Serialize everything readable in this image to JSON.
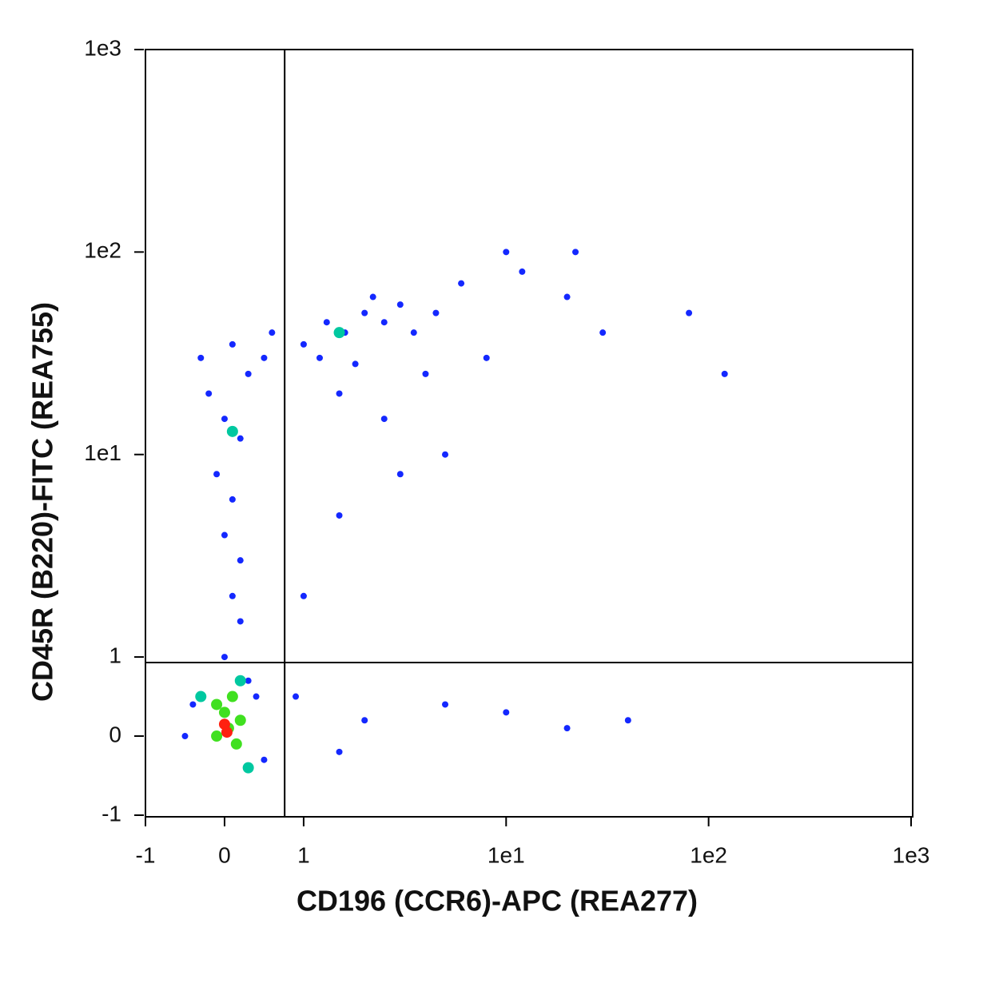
{
  "chart_data": {
    "type": "scatter",
    "xlabel": "CD196 (CCR6)-APC (REA277)",
    "ylabel": "CD45R (B220)-FITC (REA755)",
    "xscale": "biexponential",
    "yscale": "biexponential",
    "xlim": [
      -1,
      1000
    ],
    "ylim": [
      -1,
      1000
    ],
    "xticks": [
      -1,
      0,
      1,
      {
        "value": 10,
        "label": "1e1"
      },
      {
        "value": 100,
        "label": "1e2"
      },
      {
        "value": 1000,
        "label": "1e3"
      }
    ],
    "yticks": [
      -1,
      0,
      1,
      {
        "value": 10,
        "label": "1e1"
      },
      {
        "value": 100,
        "label": "1e2"
      },
      {
        "value": 1000,
        "label": "1e3"
      }
    ],
    "gate": {
      "x": 0.76,
      "y": 0.93
    },
    "series": [
      {
        "color": "#1428ff",
        "x": [
          -0.2,
          0,
          0.2,
          -0.1,
          0.1,
          0.3,
          0.5,
          0.6,
          -0.3,
          0.1,
          0,
          0.2,
          0.1,
          0.2,
          0,
          0.3,
          -0.4,
          0.5,
          0.4,
          -0.5,
          1,
          1.3,
          1.6,
          2,
          2.5,
          3,
          1.2,
          1.8,
          3.5,
          4.5,
          6,
          2.2,
          1.5,
          2.5,
          4,
          5,
          3,
          1.5,
          8,
          12,
          20,
          10,
          30,
          80,
          120,
          22,
          1,
          2,
          5,
          10,
          20,
          40,
          0.9,
          1.5
        ],
        "values": [
          20,
          15,
          12,
          8,
          6,
          25,
          30,
          40,
          30,
          35,
          4,
          3,
          2,
          1.5,
          1,
          0.7,
          0.4,
          -0.3,
          0.5,
          0,
          35,
          45,
          40,
          50,
          45,
          55,
          30,
          28,
          40,
          50,
          70,
          60,
          20,
          15,
          25,
          10,
          8,
          5,
          30,
          80,
          60,
          100,
          40,
          50,
          25,
          100,
          2,
          0.2,
          0.4,
          0.3,
          0.1,
          0.2,
          0.5,
          -0.2
        ]
      },
      {
        "color": "#00c8a0",
        "x": [
          0.1,
          1.5,
          0.3,
          -0.3,
          0.2
        ],
        "values": [
          13,
          40,
          -0.4,
          0.5,
          0.7
        ]
      },
      {
        "color": "#40e020",
        "x": [
          0,
          -0.1,
          0.15,
          0.1,
          0.05,
          -0.1,
          0.2
        ],
        "values": [
          0.3,
          0,
          -0.1,
          0.5,
          0.1,
          0.4,
          0.2
        ]
      },
      {
        "color": "#ff2010",
        "x": [
          0,
          0.03
        ],
        "values": [
          0.15,
          0.05
        ]
      }
    ]
  }
}
